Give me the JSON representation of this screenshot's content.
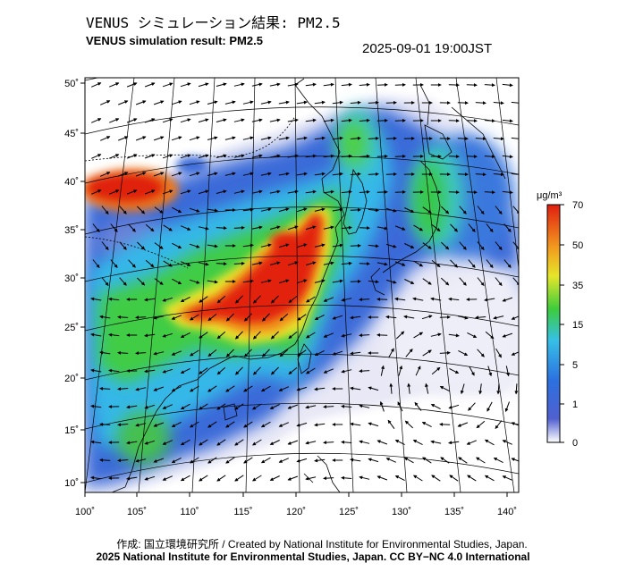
{
  "header": {
    "title_jp": "VENUS シミュレーション結果: PM2.5",
    "title_en": "VENUS simulation result: PM2.5",
    "timestamp": "2025-09-01 19:00JST"
  },
  "map": {
    "lon_labels": [
      "100˚",
      "105˚",
      "110˚",
      "115˚",
      "120˚",
      "125˚",
      "130˚",
      "135˚",
      "140˚"
    ],
    "lat_labels": [
      "10˚",
      "15˚",
      "20˚",
      "25˚",
      "30˚",
      "35˚",
      "40˚",
      "45˚",
      "50˚"
    ],
    "layers": [
      "PM2.5 concentration field",
      "wind vectors",
      "coastlines",
      "graticule"
    ]
  },
  "legend": {
    "unit": "μg/m³",
    "ticks": [
      "0",
      "1",
      "5",
      "15",
      "35",
      "50",
      "70"
    ],
    "colors": [
      "#ffffff",
      "#3b50c8",
      "#3aa0e6",
      "#26d8c0",
      "#3ccc3c",
      "#f0e82a",
      "#f29a1e",
      "#e01e10"
    ]
  },
  "footer": {
    "credit": "作成: 国立環境研究所 / Created by National Institute for Environmental Studies, Japan.",
    "copyright": "2025 National Institute for Environmental Studies, Japan. CC BY−NC 4.0 International"
  }
}
